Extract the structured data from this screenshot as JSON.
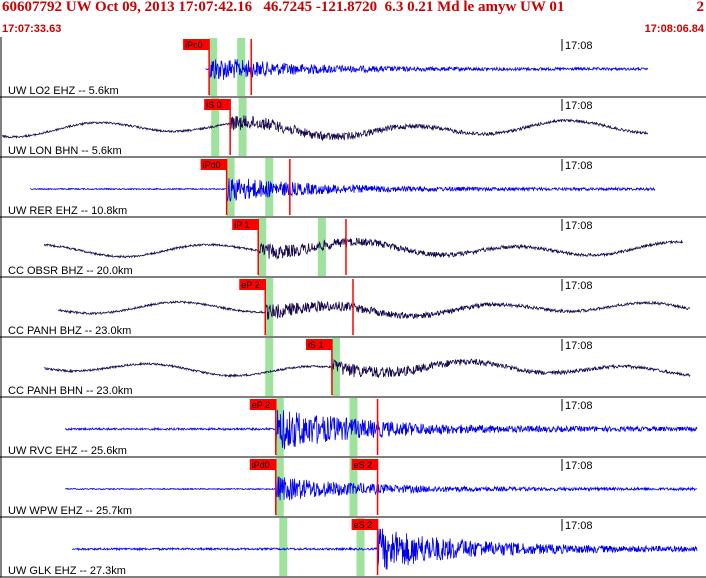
{
  "header": {
    "title": "60607792 UW Oct 09, 2013 17:07:42.16   46.7245 -121.8720  6.3 0.21 Md le amyw UW 01",
    "page": "2",
    "start_time": "17:07:33.63",
    "end_time": "17:08:06.84"
  },
  "colors": {
    "header": "#cc0000",
    "trace_short_period": "#0000ee",
    "trace_broadband": "#1a0a50",
    "pick_box": "#ff0000",
    "pick_line": "#ff0000",
    "window_band": "#9ee29e"
  },
  "panels": [
    {
      "label": "UW LO2 EHZ -- 5.6km",
      "minute": "17:08",
      "kind": "sp",
      "amp": 0.5,
      "active": [
        0.29,
        0.92
      ],
      "picks": [
        {
          "text": "iPc0",
          "phase": "P",
          "t": 0.295
        },
        {
          "text": "",
          "phase": "S",
          "t": 0.355
        }
      ],
      "bands": [
        0.295,
        0.335
      ]
    },
    {
      "label": "UW LON BHN -- 5.6km",
      "minute": "17:08",
      "kind": "bb",
      "amp": 0.6,
      "active": [
        0.0,
        0.92
      ],
      "picks": [
        {
          "text": "iS 0",
          "phase": "S",
          "t": 0.325
        }
      ],
      "bands": [
        0.298,
        0.337
      ]
    },
    {
      "label": "UW RER EHZ -- 10.8km",
      "minute": "17:08",
      "kind": "sp",
      "amp": 0.5,
      "active": [
        0.04,
        0.93
      ],
      "picks": [
        {
          "text": "iPd0",
          "phase": "P",
          "t": 0.32
        },
        {
          "text": "",
          "phase": "S",
          "t": 0.41
        }
      ],
      "bands": [
        0.32,
        0.375
      ]
    },
    {
      "label": "CC OBSR BHZ -- 20.0km",
      "minute": "17:08",
      "kind": "bb",
      "amp": 0.55,
      "active": [
        0.06,
        0.97
      ],
      "picks": [
        {
          "text": "iP 1",
          "phase": "P",
          "t": 0.365
        },
        {
          "text": "",
          "phase": "S",
          "t": 0.49
        }
      ],
      "bands": [
        0.365,
        0.45
      ]
    },
    {
      "label": "CC PANH BHZ -- 23.0km",
      "minute": "17:08",
      "kind": "bb",
      "amp": 0.5,
      "active": [
        0.08,
        0.98
      ],
      "picks": [
        {
          "text": "eP 2",
          "phase": "P",
          "t": 0.375
        },
        {
          "text": "",
          "phase": "S",
          "t": 0.5
        }
      ],
      "bands": [
        0.375
      ]
    },
    {
      "label": "CC PANH BHN -- 23.0km",
      "minute": "17:08",
      "kind": "bb",
      "amp": 0.5,
      "active": [
        0.06,
        0.98
      ],
      "picks": [
        {
          "text": "iS 1",
          "phase": "S",
          "t": 0.47
        }
      ],
      "bands": [
        0.375,
        0.47
      ]
    },
    {
      "label": "UW RVC EHZ -- 25.6km",
      "minute": "17:08",
      "kind": "sp",
      "amp": 0.85,
      "active": [
        0.09,
        0.99
      ],
      "picks": [
        {
          "text": "eP 2",
          "phase": "P",
          "t": 0.39
        },
        {
          "text": "",
          "phase": "S",
          "t": 0.535
        }
      ],
      "bands": [
        0.39,
        0.495
      ]
    },
    {
      "label": "UW WPW EHZ -- 25.7km",
      "minute": "17:08",
      "kind": "sp",
      "amp": 0.5,
      "active": [
        0.09,
        0.99
      ],
      "picks": [
        {
          "text": "iPd0",
          "phase": "P",
          "t": 0.39
        },
        {
          "text": "eS 2",
          "phase": "S",
          "t": 0.535
        }
      ],
      "bands": [
        0.39,
        0.495
      ]
    },
    {
      "label": "UW GLK EHZ -- 27.3km",
      "minute": "17:08",
      "kind": "sp",
      "amp": 0.85,
      "active": [
        0.1,
        0.99
      ],
      "picks": [
        {
          "text": "eS 2",
          "phase": "S",
          "t": 0.535
        }
      ],
      "bands": [
        0.395,
        0.505
      ]
    }
  ]
}
